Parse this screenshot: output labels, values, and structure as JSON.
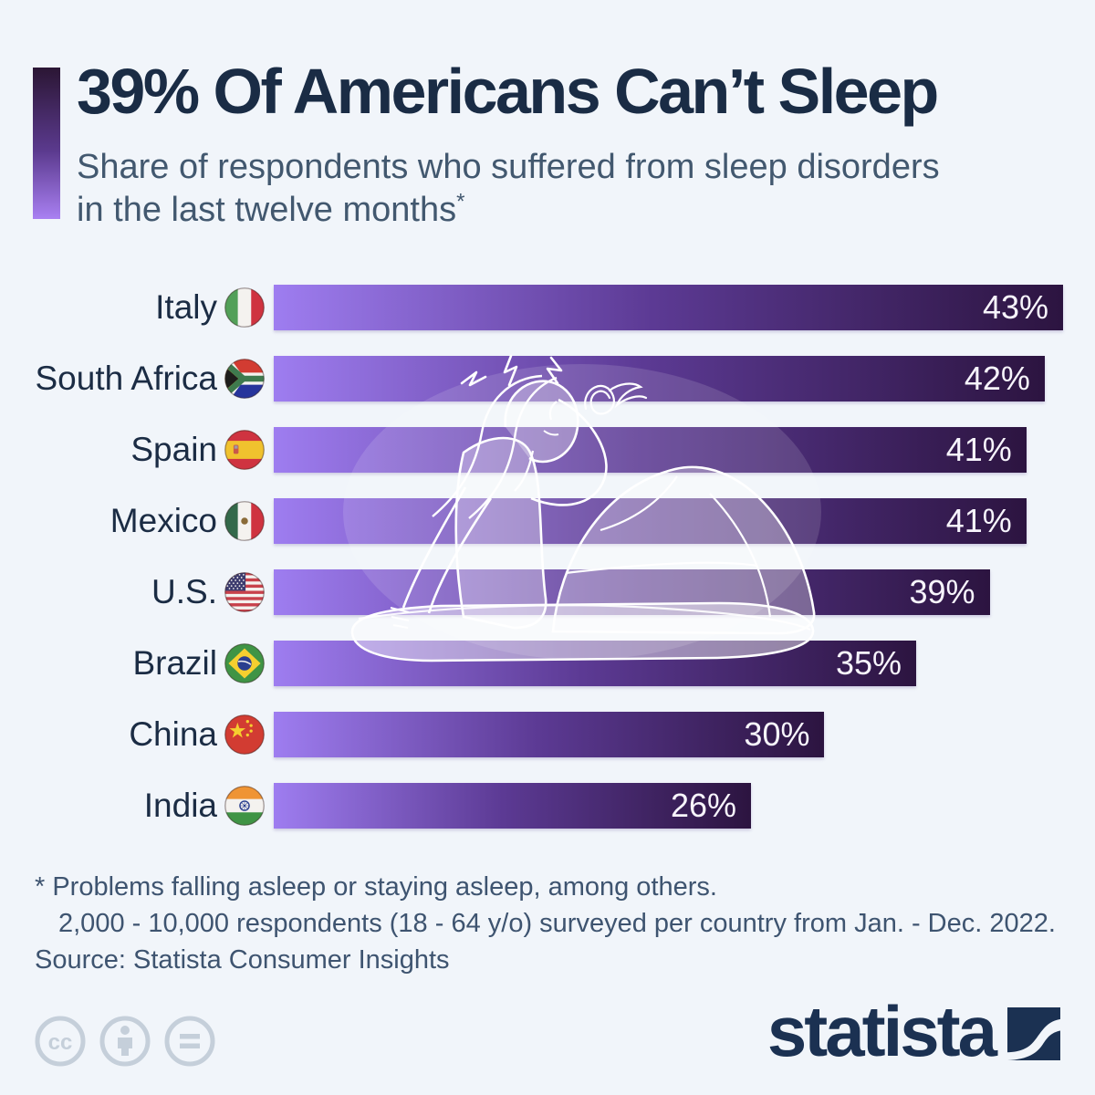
{
  "header": {
    "title": "39% Of Americans Can’t Sleep",
    "subtitle_line1": "Share of respondents who suffered from sleep disorders",
    "subtitle_line2": "in the last twelve months",
    "footnote_marker": "*"
  },
  "chart_data": {
    "type": "bar",
    "orientation": "horizontal",
    "unit": "%",
    "scale_max": 43,
    "categories": [
      "Italy",
      "South Africa",
      "Spain",
      "Mexico",
      "U.S.",
      "Brazil",
      "China",
      "India"
    ],
    "values": [
      43,
      42,
      41,
      41,
      39,
      35,
      30,
      26
    ],
    "value_labels": [
      "43%",
      "42%",
      "41%",
      "41%",
      "39%",
      "35%",
      "30%",
      "26%"
    ],
    "flags": [
      "italy-flag-icon",
      "south-africa-flag-icon",
      "spain-flag-icon",
      "mexico-flag-icon",
      "us-flag-icon",
      "brazil-flag-icon",
      "china-flag-icon",
      "india-flag-icon"
    ],
    "bar_gradient": [
      "#9e7df0",
      "#5c3a94",
      "#2c1440"
    ],
    "value_label_position": "inside-end",
    "grid": false,
    "legend": false
  },
  "footer": {
    "note_line1": "* Problems falling asleep or staying asleep, among others.",
    "note_line2": "2,000 - 10,000 respondents (18 - 64 y/o) surveyed per country from Jan. - Dec. 2022.",
    "source": "Source: Statista Consumer Insights"
  },
  "branding": {
    "logo_text": "statista",
    "license_icons": [
      "cc",
      "by",
      "nd"
    ]
  },
  "colors": {
    "background": "#f1f5fa",
    "title": "#1a2c45",
    "subtitle": "#42586f",
    "footnote": "#3e5470",
    "bar_value_text": "#f7f4fc",
    "logo_navy": "#1b3152",
    "license_gray": "#c5cfda",
    "accent_gradient_top": "#2b1634",
    "accent_gradient_bottom": "#a980f2"
  }
}
